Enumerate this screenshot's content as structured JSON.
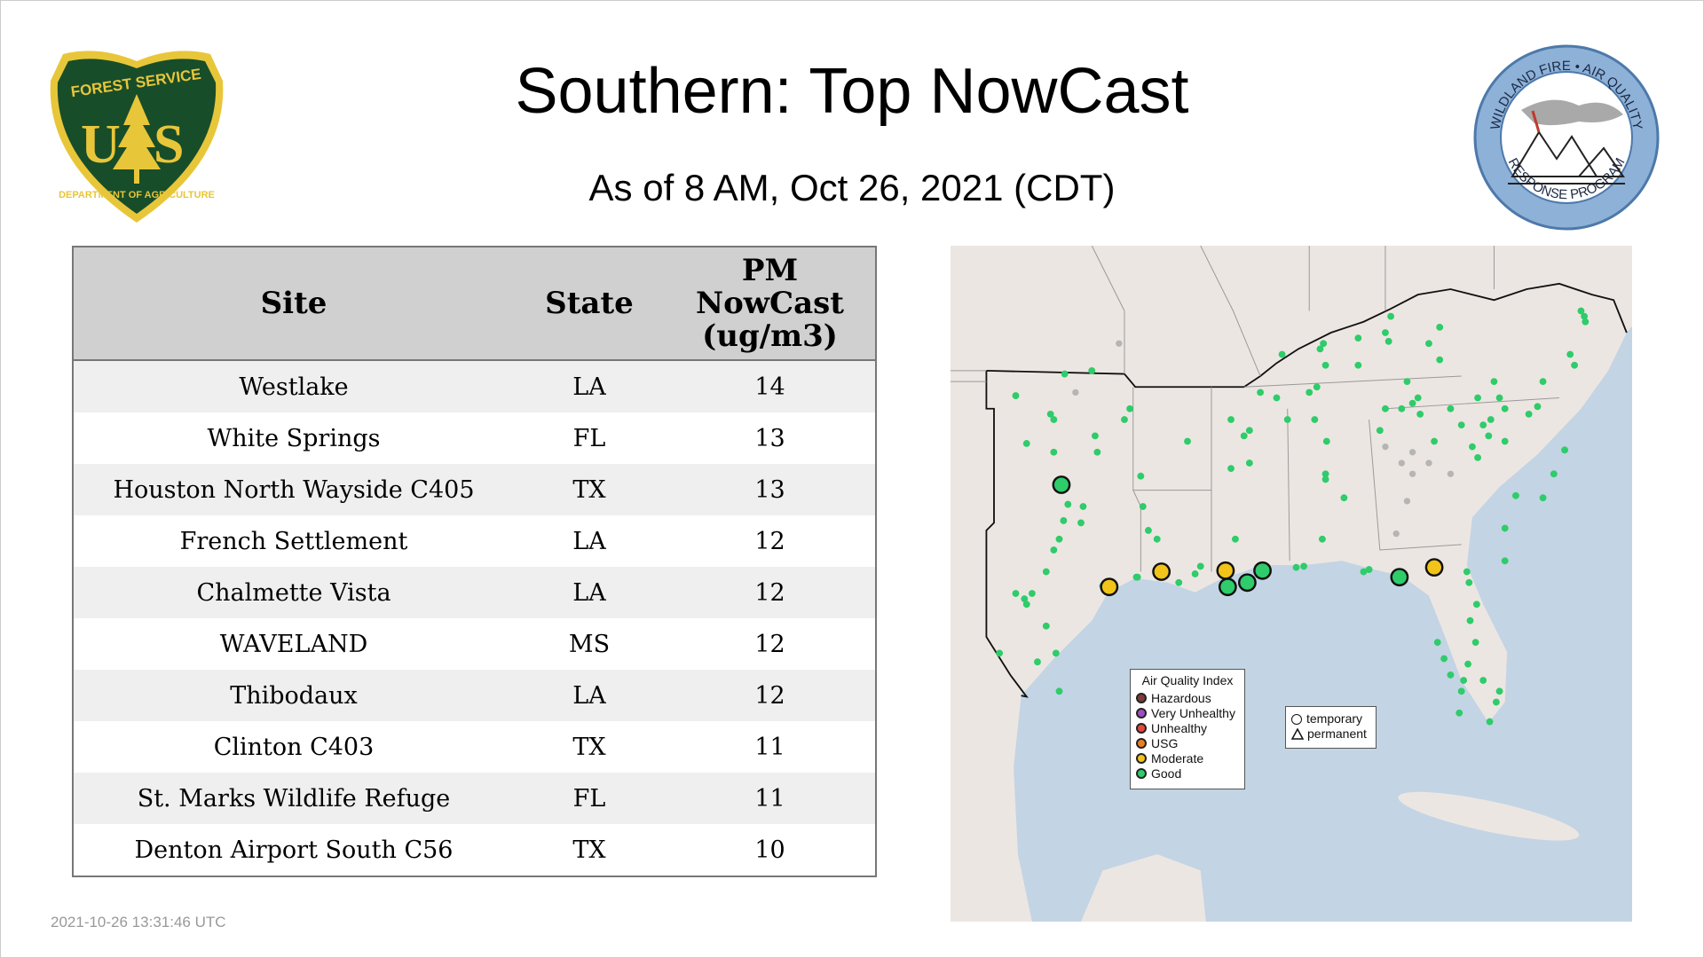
{
  "header": {
    "title": "Southern: Top NowCast",
    "subtitle": "As of  8 AM, Oct 26, 2021 (CDT)"
  },
  "logos": {
    "left": {
      "text_top": "FOREST SERVICE",
      "letters": "U S",
      "text_bottom": "DEPARTMENT OF AGRICULTURE"
    },
    "right": {
      "text_top": "WILDLAND FIRE • AIR QUALITY",
      "text_bottom": "RESPONSE PROGRAM"
    }
  },
  "table": {
    "headers": {
      "site": "Site",
      "state": "State",
      "pm_line1": "PM",
      "pm_line2": "NowCast",
      "pm_line3": "(ug/m3)"
    },
    "rows": [
      {
        "site": "Westlake",
        "state": "LA",
        "value": "14"
      },
      {
        "site": "White Springs",
        "state": "FL",
        "value": "13"
      },
      {
        "site": "Houston North Wayside C405",
        "state": "TX",
        "value": "13"
      },
      {
        "site": "French Settlement",
        "state": "LA",
        "value": "12"
      },
      {
        "site": "Chalmette Vista",
        "state": "LA",
        "value": "12"
      },
      {
        "site": "WAVELAND",
        "state": "MS",
        "value": "12"
      },
      {
        "site": "Thibodaux",
        "state": "LA",
        "value": "12"
      },
      {
        "site": "Clinton C403",
        "state": "TX",
        "value": "11"
      },
      {
        "site": "St. Marks Wildlife Refuge",
        "state": "FL",
        "value": "11"
      },
      {
        "site": "Denton Airport South C56",
        "state": "TX",
        "value": "10"
      }
    ]
  },
  "map": {
    "aqi_legend": {
      "title": "Air Quality Index",
      "items": [
        {
          "label": "Hazardous",
          "color": "#7e3a3a"
        },
        {
          "label": "Very Unhealthy",
          "color": "#9b4fc0"
        },
        {
          "label": "Unhealthy",
          "color": "#e8473c"
        },
        {
          "label": "USG",
          "color": "#e8801f"
        },
        {
          "label": "Moderate",
          "color": "#f2c318"
        },
        {
          "label": "Good",
          "color": "#2ecc6a"
        }
      ]
    },
    "type_legend": {
      "temporary": "temporary",
      "permanent": "permanent"
    },
    "colors": {
      "land": "#ece6e2",
      "water": "#c3d4e4",
      "good": "#2ecc6a",
      "moderate": "#f2c318",
      "no_data": "#b5b5b5"
    }
  },
  "timestamp": "2021-10-26 13:31:46 UTC"
}
